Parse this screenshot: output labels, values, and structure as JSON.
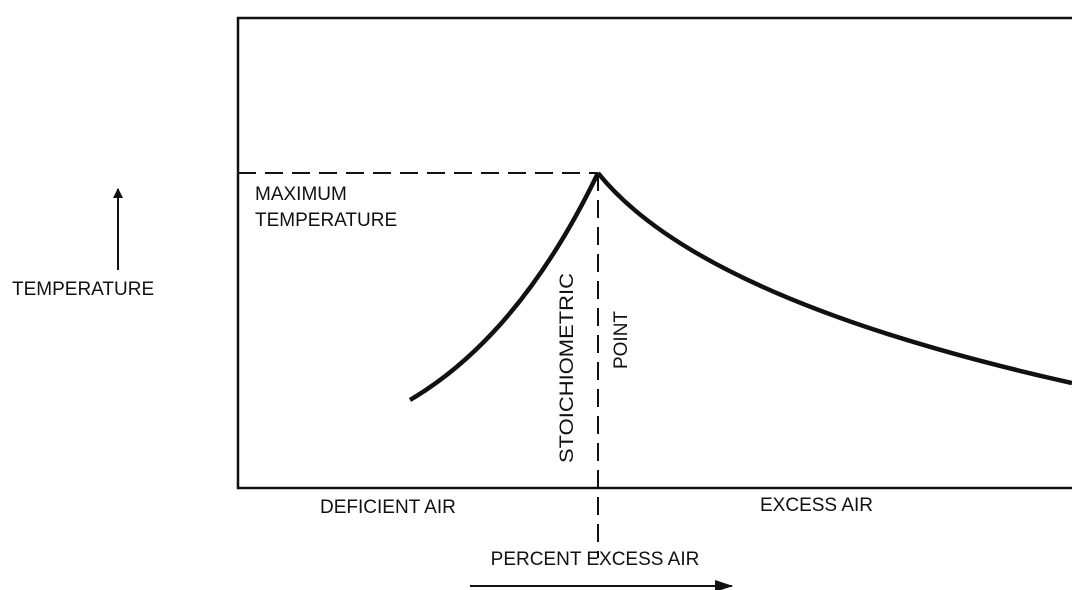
{
  "y_axis": {
    "label": "TEMPERATURE"
  },
  "x_axis": {
    "label": "PERCENT EXCESS AIR",
    "left_region": "DEFICIENT AIR",
    "right_region": "EXCESS AIR"
  },
  "annotations": {
    "maximum": [
      "MAXIMUM",
      "TEMPERATURE"
    ],
    "stoichiometric": [
      "STOICHIOMETRIC",
      "POINT"
    ]
  }
}
